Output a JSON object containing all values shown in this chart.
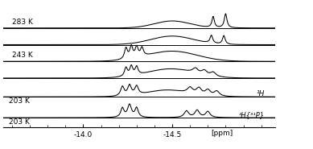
{
  "background_color": "#ffffff",
  "line_color": "#000000",
  "label_283": "283 K",
  "label_243": "243 K",
  "label_203a": "203 K",
  "label_203b": "203 K",
  "label_H": "¹H",
  "label_HP": "¹H{³¹P}",
  "xlabel": "[ppm]",
  "xmin": -13.55,
  "xmax": -15.05,
  "xtick_positions": [
    -14.0,
    -14.5
  ],
  "xtick_labels": [
    "-14.0",
    "-14.5"
  ]
}
